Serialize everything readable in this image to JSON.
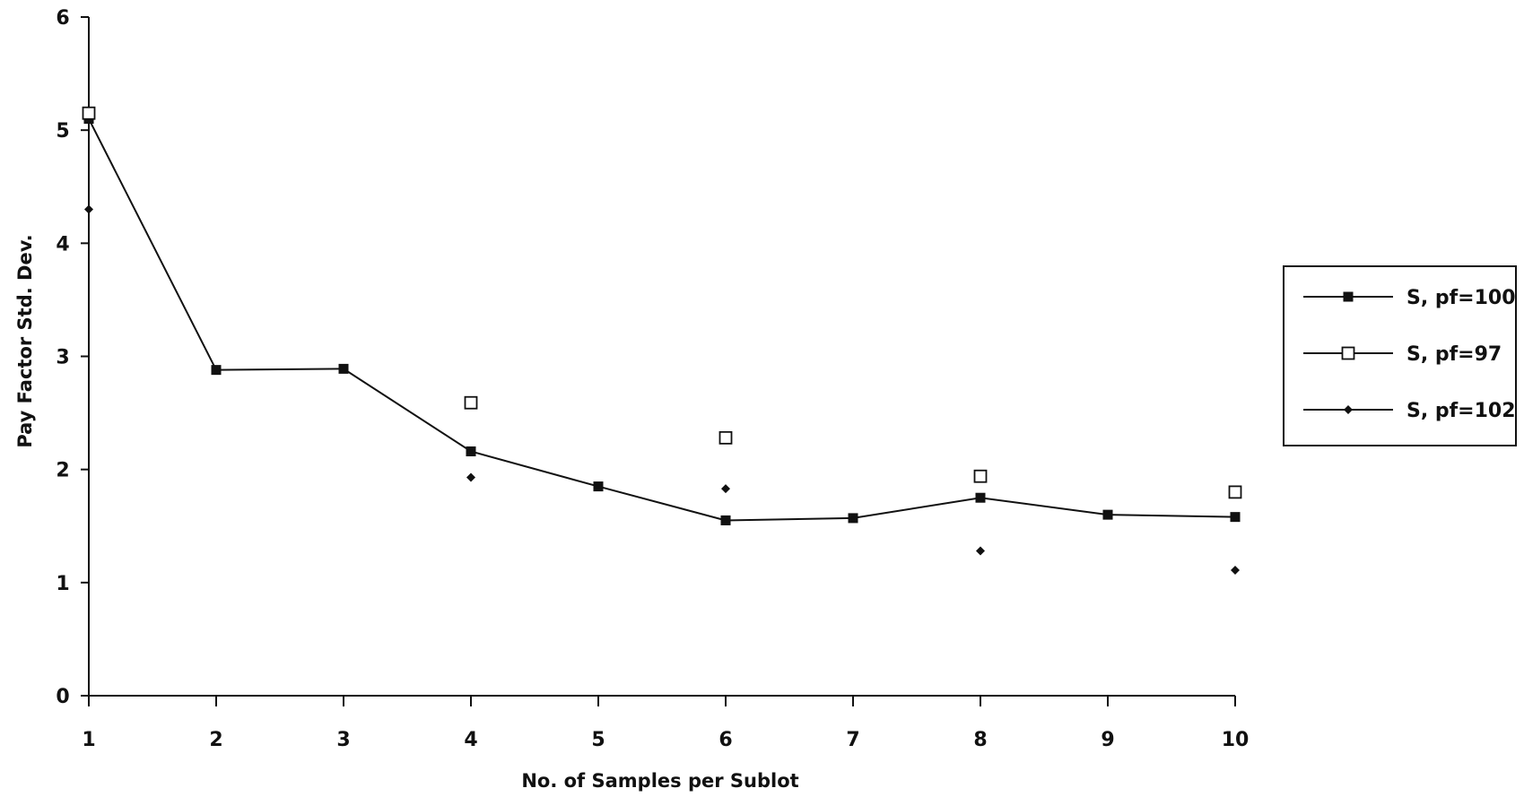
{
  "chart_data": {
    "type": "line",
    "xlabel": "No. of Samples per Sublot",
    "ylabel": "Pay Factor Std. Dev.",
    "x_ticks": [
      "1",
      "2",
      "3",
      "4",
      "5",
      "6",
      "7",
      "8",
      "9",
      "10"
    ],
    "y_ticks": [
      "0",
      "1",
      "2",
      "3",
      "4",
      "5",
      "6"
    ],
    "xlim": [
      1,
      10
    ],
    "ylim": [
      0,
      6
    ],
    "grid": false,
    "legend_position": "right",
    "series": [
      {
        "name": "S, pf=100",
        "marker": "filled-square",
        "line": true,
        "color": "#111111",
        "points": [
          {
            "x": 1,
            "y": 5.1
          },
          {
            "x": 2,
            "y": 2.88
          },
          {
            "x": 3,
            "y": 2.89
          },
          {
            "x": 4,
            "y": 2.16
          },
          {
            "x": 5,
            "y": 1.85
          },
          {
            "x": 6,
            "y": 1.55
          },
          {
            "x": 7,
            "y": 1.57
          },
          {
            "x": 8,
            "y": 1.75
          },
          {
            "x": 9,
            "y": 1.6
          },
          {
            "x": 10,
            "y": 1.58
          }
        ]
      },
      {
        "name": "S, pf=97",
        "marker": "open-square",
        "line": false,
        "color": "#111111",
        "points": [
          {
            "x": 1,
            "y": 5.15
          },
          {
            "x": 4,
            "y": 2.59
          },
          {
            "x": 6,
            "y": 2.28
          },
          {
            "x": 8,
            "y": 1.94
          },
          {
            "x": 10,
            "y": 1.8
          }
        ]
      },
      {
        "name": "S, pf=102",
        "marker": "filled-diamond",
        "line": false,
        "color": "#111111",
        "points": [
          {
            "x": 1,
            "y": 4.3
          },
          {
            "x": 4,
            "y": 1.93
          },
          {
            "x": 6,
            "y": 1.83
          },
          {
            "x": 8,
            "y": 1.28
          },
          {
            "x": 10,
            "y": 1.11
          }
        ]
      }
    ]
  }
}
